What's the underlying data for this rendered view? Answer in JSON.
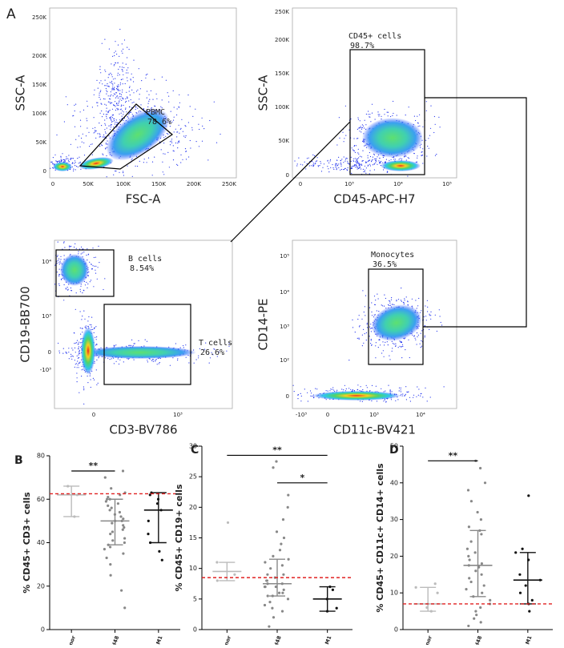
{
  "figure_label": "A",
  "flow_panels": [
    {
      "x_label": "FSC-A",
      "y_label": "SSC-A",
      "xticks": [
        "0",
        "50K",
        "100K",
        "150K",
        "200K",
        "250K"
      ],
      "yticks": [
        "0",
        "50K",
        "100K",
        "150K",
        "200K",
        "250K"
      ],
      "gates": [
        {
          "label": "PBMC",
          "percent": "78.6%"
        }
      ]
    },
    {
      "x_label": "CD45-APC-H7",
      "y_label": "SSC-A",
      "xticks": [
        "0",
        "10³",
        "10⁴",
        "10⁵"
      ],
      "yticks": [
        "0",
        "50K",
        "100K",
        "150K",
        "200K",
        "250K"
      ],
      "gates": [
        {
          "label": "CD45+ cells",
          "percent": "98.7%"
        }
      ]
    },
    {
      "x_label": "CD3-BV786",
      "y_label": "CD19-BB700",
      "xticks": [
        "0",
        "10³"
      ],
      "yticks": [
        "-10³",
        "0",
        "10³",
        "10⁴"
      ],
      "gates": [
        {
          "label": "B cells",
          "percent": "8.54%"
        },
        {
          "label": "T cells",
          "percent": "26.6%"
        }
      ]
    },
    {
      "x_label": "CD11c-BV421",
      "y_label": "CD14-PE",
      "xticks": [
        "-10³",
        "0",
        "10³",
        "10⁴"
      ],
      "yticks": [
        "0",
        "10²",
        "10³",
        "10⁴",
        "10⁵"
      ],
      "gates": [
        {
          "label": "Monocytes",
          "percent": "36.5%"
        }
      ]
    }
  ],
  "chart_data": [
    {
      "type": "dotplot",
      "panel_label": "B",
      "y_label": "% CD45+ CD3+ cells",
      "categories": [
        "Healthy donor",
        "H0-H48",
        "M1"
      ],
      "ylim": [
        0,
        80
      ],
      "yticks": [
        0,
        20,
        40,
        60,
        80
      ],
      "reference_value": 62.5,
      "reference_color": "#e02020",
      "groups": [
        {
          "color": "#bbbbbb",
          "median": 62,
          "low": 52,
          "high": 66,
          "points": [
            52,
            62,
            66
          ]
        },
        {
          "color": "#888888",
          "median": 50,
          "low": 39,
          "high": 60,
          "points": [
            10,
            18,
            25,
            30,
            33,
            35,
            37,
            38,
            39,
            40,
            41,
            42,
            44,
            45,
            46,
            47,
            48,
            49,
            50,
            50,
            51,
            52,
            53,
            54,
            55,
            56,
            57,
            58,
            59,
            60,
            60,
            61,
            62,
            63,
            65,
            70,
            73
          ]
        },
        {
          "color": "#111111",
          "median": 55,
          "low": 40,
          "high": 63,
          "points": [
            32,
            36,
            40,
            44,
            50,
            55,
            58,
            60,
            62,
            63
          ]
        }
      ],
      "significance": [
        {
          "label": "**",
          "from": 0,
          "to": 1,
          "y": 73
        }
      ]
    },
    {
      "type": "dotplot",
      "panel_label": "C",
      "y_label": "% CD45+ CD19+ cells",
      "categories": [
        "Healthy donor",
        "H0-H48",
        "M1"
      ],
      "ylim": [
        0,
        30
      ],
      "yticks": [
        0,
        5,
        10,
        15,
        20,
        25,
        30
      ],
      "reference_value": 8.5,
      "reference_color": "#e02020",
      "groups": [
        {
          "color": "#bbbbbb",
          "median": 9.5,
          "low": 8,
          "high": 11,
          "points": [
            8,
            9,
            11,
            17.5
          ]
        },
        {
          "color": "#888888",
          "median": 7.5,
          "low": 5.5,
          "high": 11.5,
          "points": [
            0.5,
            2,
            3,
            3.5,
            4,
            4.5,
            5,
            5.5,
            5.5,
            6,
            6,
            6.5,
            7,
            7,
            7,
            7.5,
            7.5,
            8,
            8,
            8.5,
            9,
            9,
            10,
            10.5,
            11,
            11.5,
            12,
            13,
            14,
            15,
            16,
            18,
            20,
            22,
            26.5,
            27.5
          ]
        },
        {
          "color": "#111111",
          "median": 5,
          "low": 3,
          "high": 7,
          "points": [
            3,
            3.5,
            5,
            6.5,
            7
          ]
        }
      ],
      "significance": [
        {
          "label": "**",
          "from": 0,
          "to": 2,
          "y": 28.5
        },
        {
          "label": "*",
          "from": 1,
          "to": 2,
          "y": 24
        }
      ]
    },
    {
      "type": "dotplot",
      "panel_label": "D",
      "y_label": "% CD45+ CD11c+ CD14+ cells",
      "categories": [
        "Healthy donor",
        "H0-H48",
        "M1"
      ],
      "ylim": [
        0,
        50
      ],
      "yticks": [
        0,
        10,
        20,
        30,
        40,
        50
      ],
      "reference_value": 7,
      "reference_color": "#e02020",
      "groups": [
        {
          "color": "#bbbbbb",
          "median": 7,
          "low": 5,
          "high": 11.5,
          "points": [
            5,
            6,
            7,
            10,
            11.5,
            12.5
          ]
        },
        {
          "color": "#888888",
          "median": 17.5,
          "low": 9,
          "high": 27,
          "points": [
            1,
            2,
            3,
            4,
            5,
            6,
            7,
            8,
            9,
            10,
            11,
            12,
            13,
            14,
            15,
            16,
            17,
            17.5,
            18,
            19,
            20,
            21,
            22,
            24,
            26,
            27,
            28,
            30,
            32,
            35,
            38,
            40,
            44,
            46
          ]
        },
        {
          "color": "#111111",
          "median": 13.5,
          "low": 7,
          "high": 21,
          "points": [
            5,
            7,
            8,
            10,
            12,
            13.5,
            15,
            19,
            21,
            22,
            36.5
          ]
        }
      ],
      "significance": [
        {
          "label": "**",
          "from": 0,
          "to": 1,
          "y": 46
        }
      ]
    }
  ]
}
